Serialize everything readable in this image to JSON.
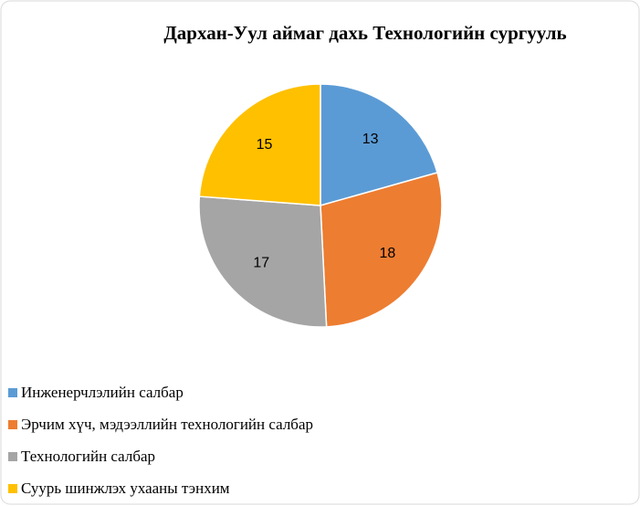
{
  "chart_data": {
    "type": "pie",
    "title": "Дархан-Уул аймаг дахь Технологийн сургууль",
    "categories": [
      "Инженерчлэлийн салбар",
      "Эрчим хүч, мэдээллийн технологийн салбар",
      "Технологийн салбар",
      "Суурь шинжлэх ухааны тэнхим"
    ],
    "values": [
      13,
      18,
      17,
      15
    ],
    "colors": [
      "#5b9bd5",
      "#ed7d31",
      "#a5a5a5",
      "#ffc000"
    ],
    "legend": "bottom",
    "data_labels": true
  }
}
